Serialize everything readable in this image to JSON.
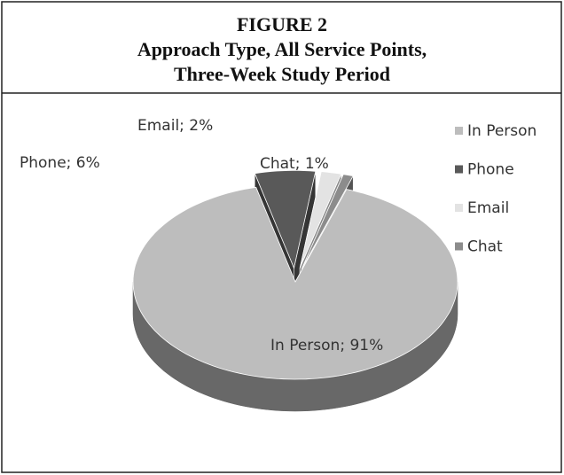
{
  "chart_data": {
    "type": "pie",
    "title": "FIGURE 2",
    "subtitle": [
      "Approach Type, All Service Points,",
      "Three-Week Study Period"
    ],
    "categories": [
      "In Person",
      "Phone",
      "Email",
      "Chat"
    ],
    "values": [
      91,
      6,
      2,
      1
    ],
    "value_labels": [
      "In Person; 91%",
      "Phone; 6%",
      "Email; 2%",
      "Chat; 1%"
    ],
    "colors": [
      "#bdbdbd",
      "#595959",
      "#e3e3e3",
      "#8c8c8c"
    ],
    "legend": "right"
  }
}
